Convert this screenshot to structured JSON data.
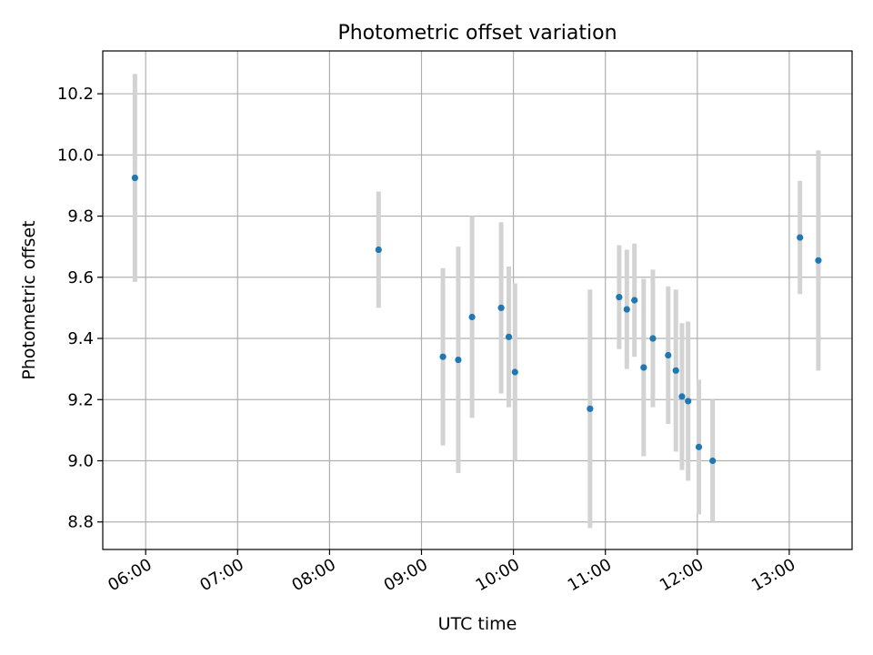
{
  "chart_data": {
    "type": "scatter",
    "title": "Photometric offset variation",
    "xlabel": "UTC time",
    "ylabel": "Photometric offset",
    "xlim": [
      "05:32",
      "13:41"
    ],
    "ylim": [
      8.71,
      10.34
    ],
    "grid": true,
    "x_ticks": [
      "06:00",
      "07:00",
      "08:00",
      "09:00",
      "10:00",
      "11:00",
      "12:00",
      "13:00"
    ],
    "y_ticks": [
      8.8,
      9.0,
      9.2,
      9.4,
      9.6,
      9.8,
      10.0,
      10.2
    ],
    "marker_color": "#1f77b4",
    "errorbar_color": "#d3d3d3",
    "points": [
      {
        "t": "05:53",
        "y": 9.925,
        "err": 0.34
      },
      {
        "t": "08:32",
        "y": 9.69,
        "err": 0.19
      },
      {
        "t": "09:14",
        "y": 9.34,
        "err": 0.29
      },
      {
        "t": "09:24",
        "y": 9.33,
        "err": 0.37
      },
      {
        "t": "09:33",
        "y": 9.47,
        "err": 0.33
      },
      {
        "t": "09:52",
        "y": 9.5,
        "err": 0.28
      },
      {
        "t": "09:57",
        "y": 9.405,
        "err": 0.23
      },
      {
        "t": "10:01",
        "y": 9.29,
        "err": 0.29
      },
      {
        "t": "10:50",
        "y": 9.17,
        "err": 0.39
      },
      {
        "t": "11:09",
        "y": 9.535,
        "err": 0.17
      },
      {
        "t": "11:14",
        "y": 9.495,
        "err": 0.195
      },
      {
        "t": "11:19",
        "y": 9.525,
        "err": 0.185
      },
      {
        "t": "11:25",
        "y": 9.305,
        "err": 0.29
      },
      {
        "t": "11:31",
        "y": 9.4,
        "err": 0.225
      },
      {
        "t": "11:41",
        "y": 9.345,
        "err": 0.225
      },
      {
        "t": "11:46",
        "y": 9.295,
        "err": 0.265
      },
      {
        "t": "11:50",
        "y": 9.21,
        "err": 0.24
      },
      {
        "t": "11:54",
        "y": 9.195,
        "err": 0.26
      },
      {
        "t": "12:01",
        "y": 9.045,
        "err": 0.22
      },
      {
        "t": "12:10",
        "y": 9.0,
        "err": 0.2
      },
      {
        "t": "13:07",
        "y": 9.73,
        "err": 0.185
      },
      {
        "t": "13:19",
        "y": 9.655,
        "err": 0.36
      }
    ]
  }
}
